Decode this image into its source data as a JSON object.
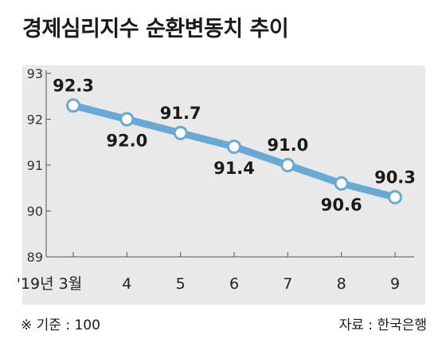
{
  "chart_data": {
    "type": "line",
    "title": "경제심리지수 순환변동치 추이",
    "categories": [
      "'19년 3월",
      "4",
      "5",
      "6",
      "7",
      "8",
      "9"
    ],
    "values": [
      92.3,
      92.0,
      91.7,
      91.4,
      91.0,
      90.6,
      90.3
    ],
    "data_labels": [
      "92.3",
      "92.0",
      "91.7",
      "91.4",
      "91.0",
      "90.6",
      "90.3"
    ],
    "ylim": [
      89,
      93
    ],
    "y_ticks": [
      89,
      90,
      91,
      92,
      93
    ],
    "y_tick_labels": [
      "89",
      "90",
      "91",
      "92",
      "93"
    ],
    "grid": false,
    "line_color": "#6aa8d6",
    "marker_fill": "#ffffff",
    "background_color": "#e9e9ea"
  },
  "notes": {
    "left": "※ 기준 : 100",
    "right": "자료 : 한국은행"
  }
}
